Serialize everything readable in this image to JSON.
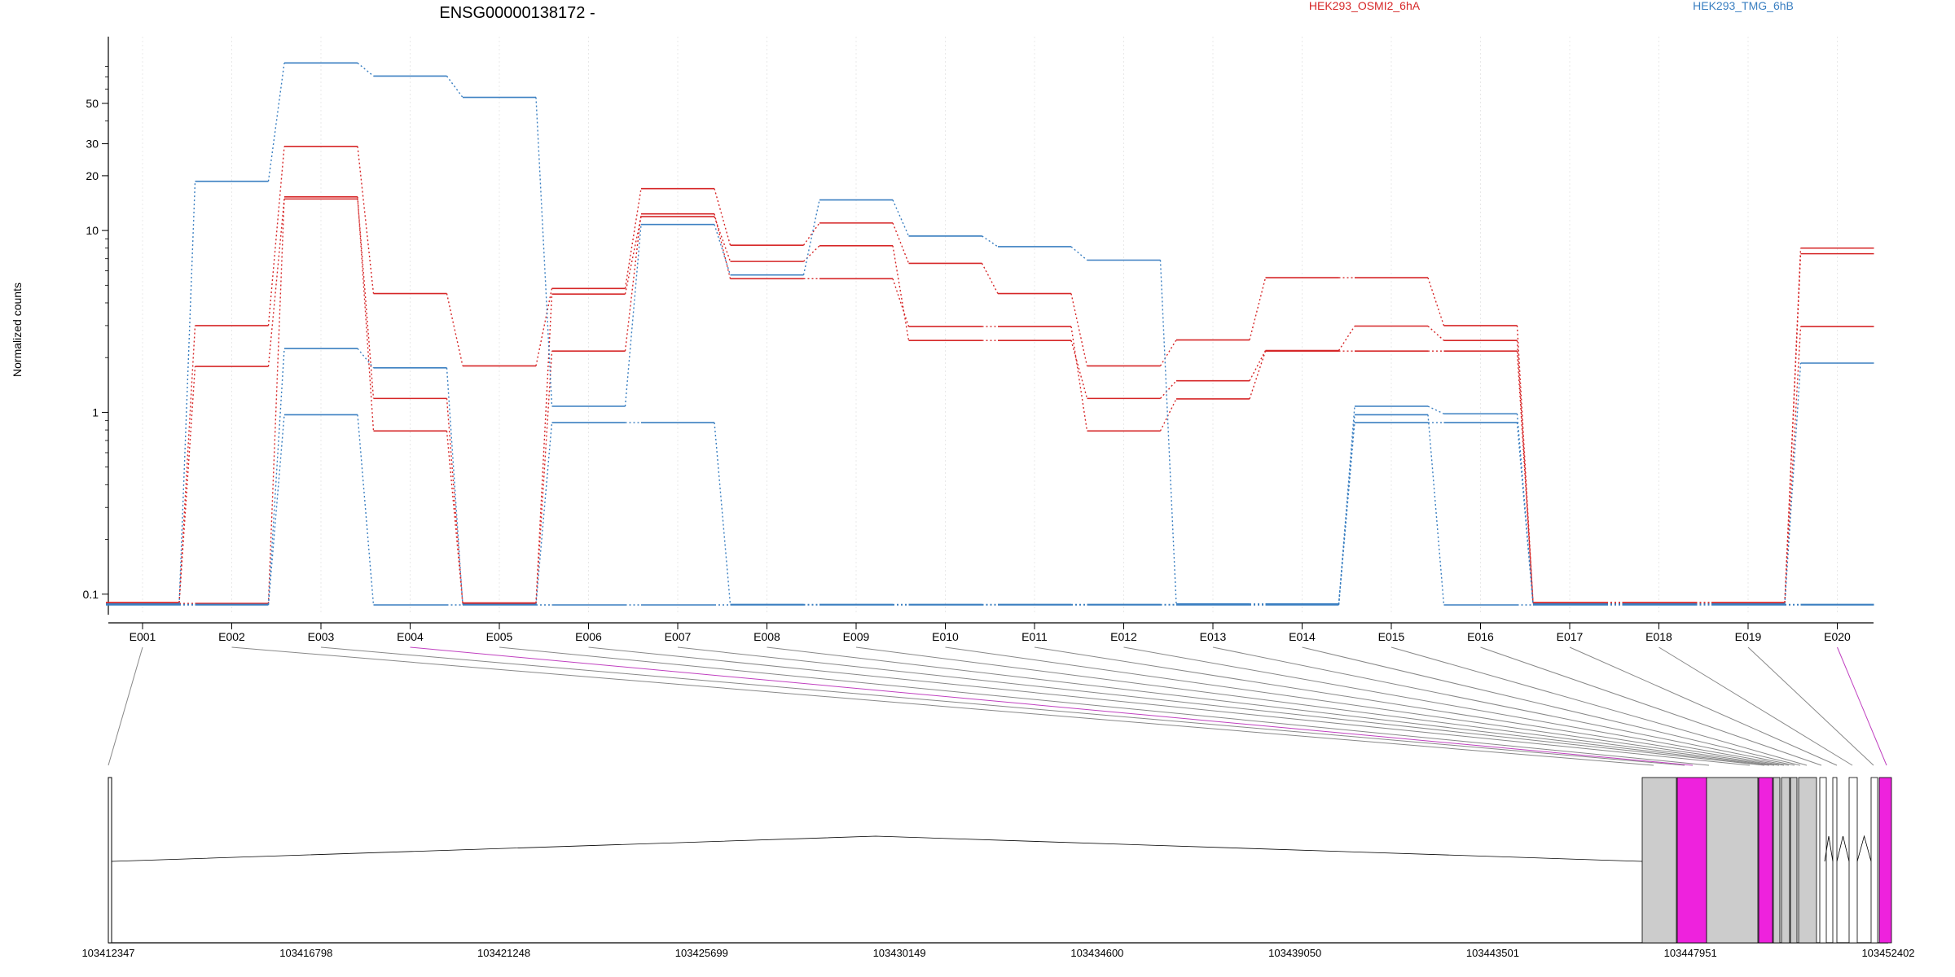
{
  "chart_data": {
    "type": "line",
    "title": "ENSG00000138172 -",
    "ylabel": "Normalized counts",
    "xlabel": "",
    "y_scale": "log",
    "y_ticks": [
      0.1,
      1,
      10,
      20,
      30,
      50
    ],
    "y_tick_labels": [
      "0.1",
      "1",
      "10",
      "20",
      "30",
      "50"
    ],
    "ylim": [
      0.09,
      90
    ],
    "categories": [
      "E001",
      "E002",
      "E003",
      "E004",
      "E005",
      "E006",
      "E007",
      "E008",
      "E009",
      "E010",
      "E011",
      "E012",
      "E013",
      "E014",
      "E015",
      "E016",
      "E017",
      "E018",
      "E019",
      "E020"
    ],
    "legend": [
      {
        "name": "HEK293_OSMI2_6hA",
        "color": "#d62728"
      },
      {
        "name": "HEK293_TMG_6hB",
        "color": "#3a7fc1"
      }
    ],
    "grid": "vertical dotted",
    "series": [
      {
        "condition": "HEK293_OSMI2_6hA",
        "color": "#d62728",
        "values": [
          0,
          3.0,
          29,
          4.5,
          1.8,
          4.8,
          17,
          8.3,
          11,
          6.6,
          4.5,
          1.8,
          2.5,
          5.5,
          5.5,
          3.0,
          0,
          0,
          0,
          8.0
        ]
      },
      {
        "condition": "HEK293_OSMI2_6hA",
        "color": "#d62728",
        "values": [
          0,
          1.8,
          15,
          1.2,
          0,
          4.5,
          12,
          6.8,
          8.3,
          2.5,
          2.5,
          1.2,
          1.5,
          2.2,
          3.0,
          2.5,
          0,
          0,
          0,
          7.5
        ]
      },
      {
        "condition": "HEK293_OSMI2_6hA",
        "color": "#d62728",
        "values": [
          0,
          0,
          15.5,
          0.8,
          0,
          2.2,
          12.5,
          5.5,
          5.5,
          3.0,
          3.0,
          0.8,
          1.2,
          2.2,
          2.2,
          2.2,
          0,
          0,
          0,
          3.0
        ]
      },
      {
        "condition": "HEK293_TMG_6hB",
        "color": "#3a7fc1",
        "values": [
          0,
          19,
          85,
          72,
          55,
          1.1,
          11,
          5.8,
          15,
          9.5,
          8.3,
          7.0,
          0,
          0,
          1.1,
          1.0,
          0,
          0,
          0,
          1.9
        ]
      },
      {
        "condition": "HEK293_TMG_6hB",
        "color": "#3a7fc1",
        "values": [
          0,
          0,
          2.3,
          1.8,
          0,
          0.9,
          0.9,
          0,
          0,
          0,
          0,
          0,
          0,
          0,
          0.9,
          0.9,
          0,
          0,
          0,
          0
        ]
      },
      {
        "condition": "HEK293_TMG_6hB",
        "color": "#3a7fc1",
        "values": [
          0,
          0,
          1.0,
          0,
          0,
          0,
          0,
          0,
          0,
          0,
          0,
          0,
          0,
          0,
          1.0,
          0,
          0,
          0,
          0,
          0
        ]
      }
    ],
    "gene_model": {
      "start": 103412347,
      "end": 103452402,
      "coordinate_ticks": [
        "103412347",
        "103416798",
        "103421248",
        "103425699",
        "103430149",
        "103434600",
        "103439050",
        "103443501",
        "103447951",
        "103452402"
      ],
      "highlighted_exons": [
        "E004",
        "E020"
      ],
      "highlight_color": "#ee22dd",
      "exon_fill": "#cccccc"
    }
  }
}
